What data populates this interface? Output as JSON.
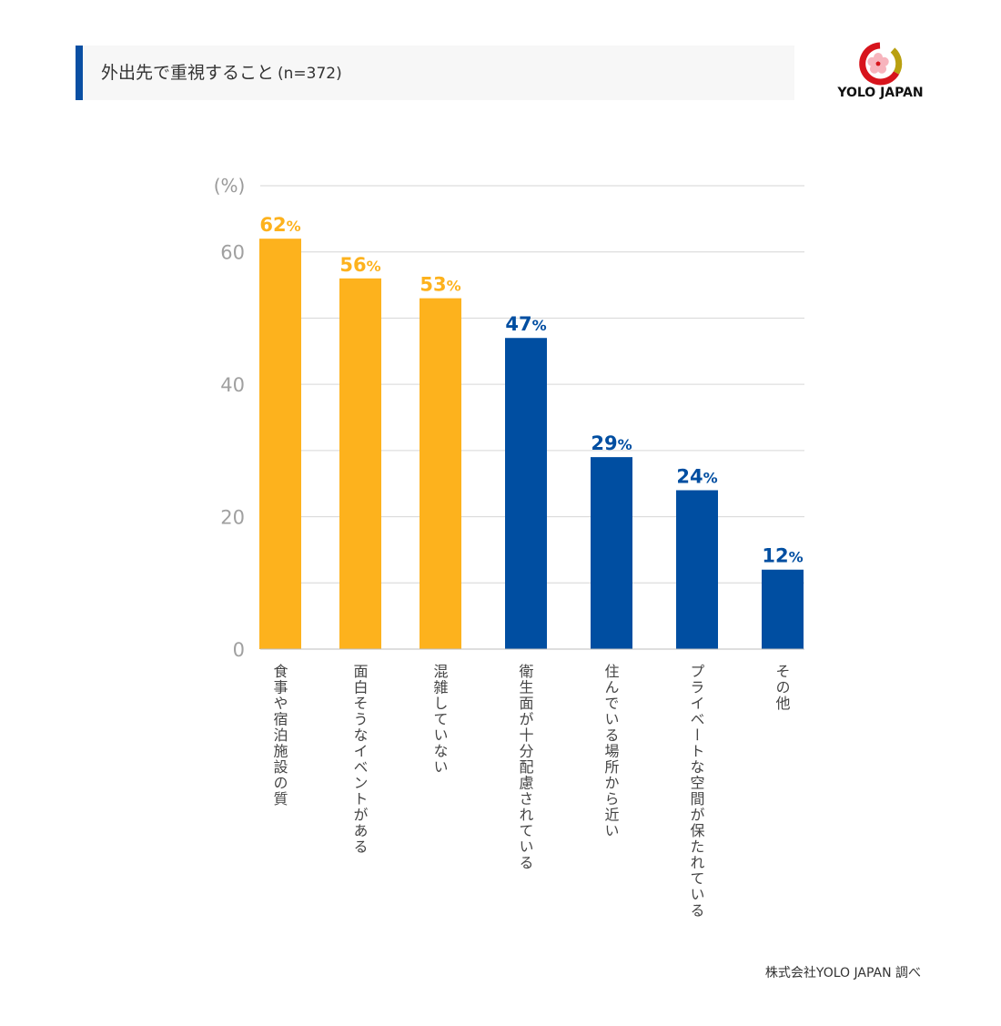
{
  "title": {
    "main": "外出先で重視すること",
    "sub": "(n=372)"
  },
  "logo": {
    "text": "YOLO JAPAN"
  },
  "source": "株式会社YOLO JAPAN 調べ",
  "colors": {
    "highlight": "#fdb21d",
    "base": "#004ea1",
    "accent_bar": "#0a4fa3"
  },
  "chart_data": {
    "type": "bar",
    "yunit": "(%)",
    "ylim": [
      0,
      70
    ],
    "yticks": [
      0,
      20,
      40,
      60
    ],
    "gridlines": [
      0,
      10,
      20,
      30,
      40,
      50,
      60,
      70
    ],
    "categories": [
      "食事や宿泊施設の質",
      "面白そうなイベントがある",
      "混雑していない",
      "衛生面が十分配慮されている",
      "住んでいる場所から近い",
      "プライベートな空間が保たれている",
      "その他"
    ],
    "values": [
      62,
      56,
      53,
      47,
      29,
      24,
      12
    ],
    "value_labels": [
      "62",
      "56",
      "53",
      "47",
      "29",
      "24",
      "12"
    ],
    "value_suffix": "%",
    "highlighted": [
      true,
      true,
      true,
      false,
      false,
      false,
      false
    ]
  }
}
